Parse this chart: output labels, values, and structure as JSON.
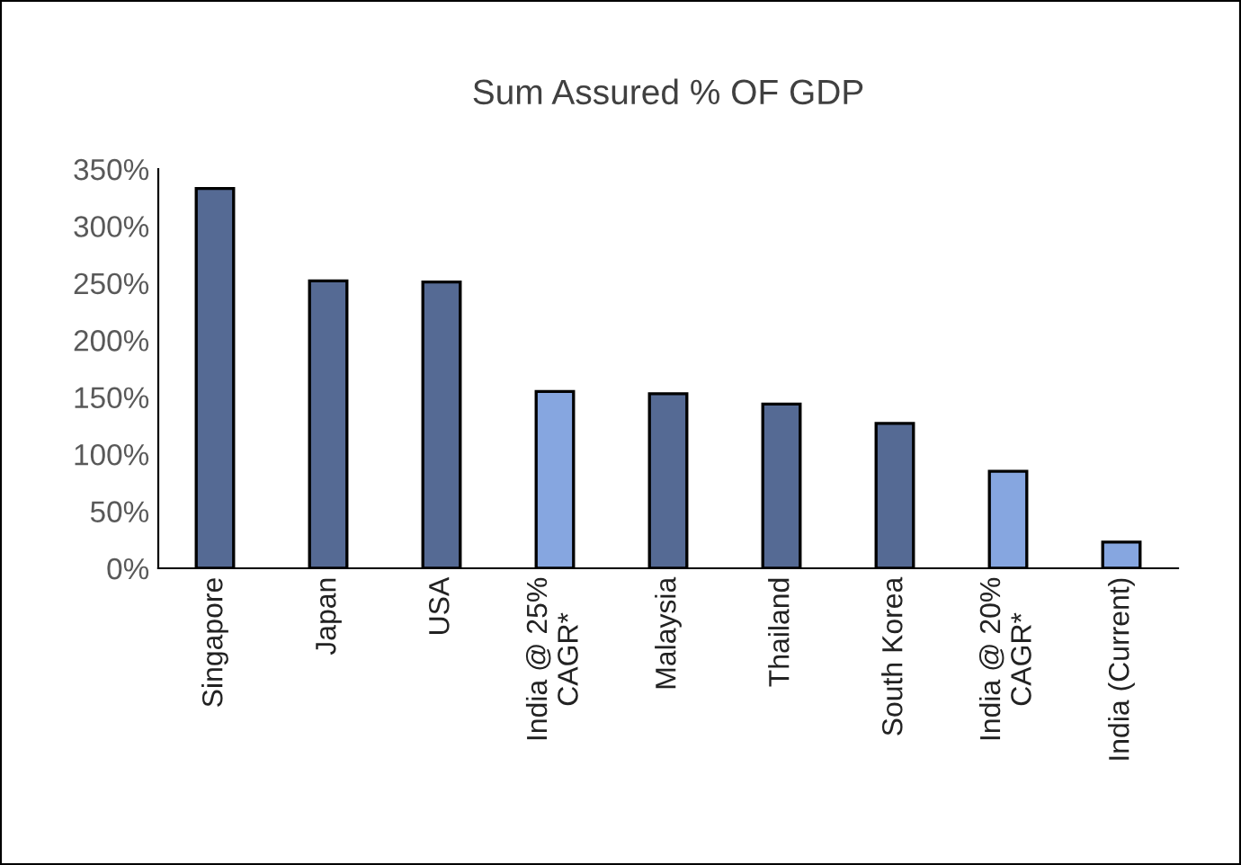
{
  "chart_data": {
    "type": "bar",
    "title": "Sum Assured % OF GDP",
    "categories": [
      "Singapore",
      "Japan",
      "USA",
      "India @ 25%\nCAGR*",
      "Malaysia",
      "Thailand",
      "South Korea",
      "India @ 20%\nCAGR*",
      "India (Current)"
    ],
    "values": [
      333,
      252,
      251,
      155,
      153,
      144,
      127,
      85,
      23
    ],
    "colors": [
      "#556a94",
      "#556a94",
      "#556a94",
      "#86a6e0",
      "#556a94",
      "#556a94",
      "#556a94",
      "#86a6e0",
      "#86a6e0"
    ],
    "ylim": [
      0,
      350
    ],
    "yticks": [
      {
        "value": 0,
        "label": "0%"
      },
      {
        "value": 50,
        "label": "50%"
      },
      {
        "value": 100,
        "label": "100%"
      },
      {
        "value": 150,
        "label": "150%"
      },
      {
        "value": 200,
        "label": "200%"
      },
      {
        "value": 250,
        "label": "250%"
      },
      {
        "value": 300,
        "label": "300%"
      },
      {
        "value": 350,
        "label": "350%"
      }
    ],
    "grid": false,
    "legend": false
  }
}
